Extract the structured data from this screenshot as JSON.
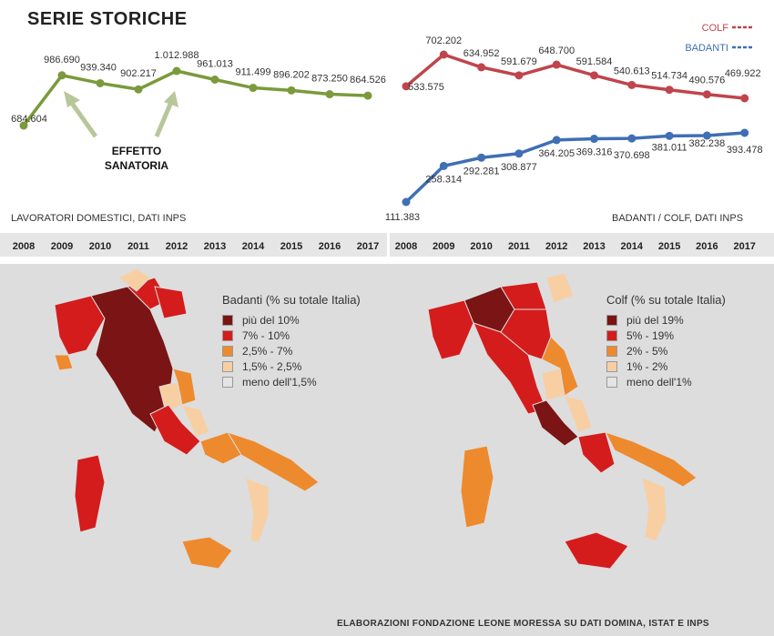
{
  "title": "SERIE STORICHE",
  "annotation": [
    "EFFETTO",
    "SANATORIA"
  ],
  "left_footer": "LAVORATORI DOMESTICI, DATI INPS",
  "right_footer": "BADANTI / COLF, DATI INPS",
  "source": "ELABORAZIONI FONDAZIONE LEONE MORESSA SU DATI DOMINA, ISTAT E INPS",
  "colors": {
    "total": "#7a9a3c",
    "colf": "#c0444c",
    "badanti": "#3f6fb4"
  },
  "chart_data": [
    {
      "type": "line",
      "x": [
        "2008",
        "2009",
        "2010",
        "2011",
        "2012",
        "2013",
        "2014",
        "2015",
        "2016",
        "2017"
      ],
      "series": [
        {
          "name": "",
          "values": [
            684604,
            986690,
            939340,
            902217,
            1012988,
            961013,
            911499,
            896202,
            873250,
            864526
          ],
          "labels": [
            "684.604",
            "986.690",
            "939.340",
            "902.217",
            "1.012.988",
            "961.013",
            "911.499",
            "896.202",
            "873.250",
            "864.526"
          ]
        }
      ]
    },
    {
      "type": "line",
      "x": [
        "2008",
        "2009",
        "2010",
        "2011",
        "2012",
        "2013",
        "2014",
        "2015",
        "2016",
        "2017"
      ],
      "series": [
        {
          "name": "COLF",
          "values": [
            533575,
            702202,
            634952,
            591679,
            648700,
            591584,
            540613,
            514734,
            490576,
            469922
          ],
          "labels": [
            "533.575",
            "702.202",
            "634.952",
            "591.679",
            "648.700",
            "591.584",
            "540.613",
            "514.734",
            "490.576",
            "469.922"
          ]
        },
        {
          "name": "BADANTI",
          "values": [
            111383,
            258314,
            292281,
            308877,
            364205,
            369316,
            370698,
            381011,
            382238,
            393478
          ],
          "labels": [
            "111.383",
            "258.314",
            "292.281",
            "308.877",
            "364.205",
            "369.316",
            "370.698",
            "381.011",
            "382.238",
            "393.478"
          ]
        }
      ]
    }
  ],
  "maps": [
    {
      "title": "Badanti (% su totale Italia)",
      "legend": [
        {
          "label": "più del 10%",
          "color": "#7b1414"
        },
        {
          "label": "7%   -  10%",
          "color": "#d41c1c"
        },
        {
          "label": "2,5% -   7%",
          "color": "#ee8a2e"
        },
        {
          "label": "1,5% -   2,5%",
          "color": "#f7cfa3"
        },
        {
          "label": "meno dell'1,5%",
          "color": "#e4e4e4"
        }
      ]
    },
    {
      "title": "Colf (% su totale Italia)",
      "legend": [
        {
          "label": "più del 19%",
          "color": "#7b1414"
        },
        {
          "label": "5%  -  19%",
          "color": "#d41c1c"
        },
        {
          "label": "2%  -   5%",
          "color": "#ee8a2e"
        },
        {
          "label": "1%  -   2%",
          "color": "#f7cfa3"
        },
        {
          "label": "meno dell'1%",
          "color": "#e4e4e4"
        }
      ]
    }
  ]
}
